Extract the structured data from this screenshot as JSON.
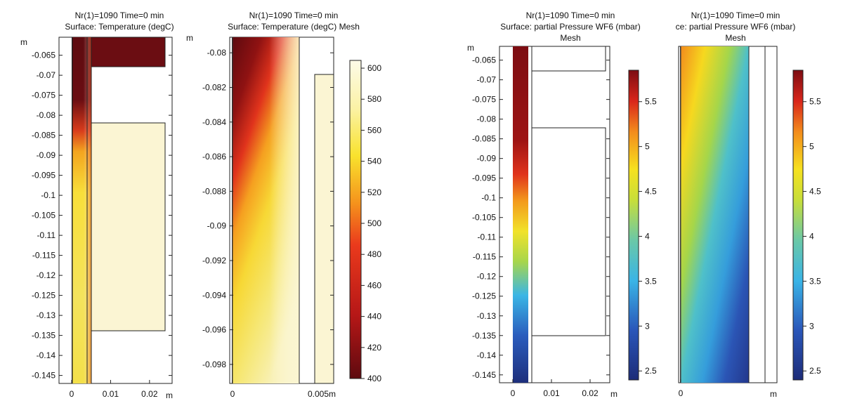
{
  "chart_data": [
    {
      "id": "p1",
      "type": "heatmap",
      "title": "Nr(1)=1090 Time=0 min",
      "subtitle": "Surface: Temperature (degC)",
      "xlabel": "m",
      "ylabel": "m",
      "xlim": [
        -0.004,
        0.026
      ],
      "ylim": [
        -0.147,
        -0.0605
      ],
      "xticks": [
        {
          "v": 0,
          "label": "0"
        },
        {
          "v": 0.01,
          "label": "0.01"
        },
        {
          "v": 0.02,
          "label": "0.02"
        }
      ],
      "yticks": [
        {
          "v": -0.065,
          "label": "-0.065"
        },
        {
          "v": -0.07,
          "label": "-0.07"
        },
        {
          "v": -0.075,
          "label": "-0.075"
        },
        {
          "v": -0.08,
          "label": "-0.08"
        },
        {
          "v": -0.085,
          "label": "-0.085"
        },
        {
          "v": -0.09,
          "label": "-0.09"
        },
        {
          "v": -0.095,
          "label": "-0.095"
        },
        {
          "v": -0.1,
          "label": "-0.1"
        },
        {
          "v": -0.105,
          "label": "-0.105"
        },
        {
          "v": -0.11,
          "label": "-0.11"
        },
        {
          "v": -0.115,
          "label": "-0.115"
        },
        {
          "v": -0.12,
          "label": "-0.12"
        },
        {
          "v": -0.125,
          "label": "-0.125"
        },
        {
          "v": -0.13,
          "label": "-0.13"
        },
        {
          "v": -0.135,
          "label": "-0.135"
        },
        {
          "v": -0.14,
          "label": "-0.14"
        },
        {
          "v": -0.145,
          "label": "-0.145"
        }
      ],
      "colorscale": "heat",
      "color_range": [
        400,
        600
      ],
      "regions": [
        {
          "name": "gap-channel",
          "x": [
            0,
            0.0045
          ],
          "y": [
            -0.147,
            -0.0605
          ]
        },
        {
          "name": "top-block",
          "x": [
            0.0045,
            0.024
          ],
          "y": [
            -0.066,
            -0.0605
          ],
          "value": 400
        },
        {
          "name": "wafer-block",
          "x": [
            0.0045,
            0.024
          ],
          "y": [
            -0.134,
            -0.0808
          ],
          "value": 596
        }
      ]
    },
    {
      "id": "p2",
      "type": "heatmap",
      "title": "Nr(1)=1090 Time=0 min",
      "subtitle": "Surface: Temperature (degC) Mesh",
      "ylabel": "m",
      "x_end_label": "0.005m",
      "xlim": [
        -0.0002,
        0.0058
      ],
      "ylim": [
        -0.0991,
        -0.0791
      ],
      "xticks": [
        {
          "v": 0,
          "label": "0"
        }
      ],
      "yticks": [
        {
          "v": -0.08,
          "label": "-0.08"
        },
        {
          "v": -0.082,
          "label": "-0.082"
        },
        {
          "v": -0.084,
          "label": "-0.084"
        },
        {
          "v": -0.086,
          "label": "-0.086"
        },
        {
          "v": -0.088,
          "label": "-0.088"
        },
        {
          "v": -0.09,
          "label": "-0.09"
        },
        {
          "v": -0.092,
          "label": "-0.092"
        },
        {
          "v": -0.094,
          "label": "-0.094"
        },
        {
          "v": -0.096,
          "label": "-0.096"
        },
        {
          "v": -0.098,
          "label": "-0.098"
        }
      ],
      "colorscale": "heat",
      "color_range": [
        400,
        605
      ],
      "colorbar_ticks": [
        {
          "v": 400,
          "label": "400"
        },
        {
          "v": 420,
          "label": "420"
        },
        {
          "v": 440,
          "label": "440"
        },
        {
          "v": 460,
          "label": "460"
        },
        {
          "v": 480,
          "label": "480"
        },
        {
          "v": 500,
          "label": "500"
        },
        {
          "v": 520,
          "label": "520"
        },
        {
          "v": 540,
          "label": "540"
        },
        {
          "v": 560,
          "label": "560"
        },
        {
          "v": 580,
          "label": "580"
        },
        {
          "v": 600,
          "label": "600"
        }
      ],
      "regions": [
        {
          "name": "gap-channel",
          "x": [
            0,
            0.0045
          ],
          "y": [
            -0.0991,
            -0.0791
          ]
        },
        {
          "name": "wafer-block",
          "x": [
            0.0045,
            0.0056
          ],
          "y": [
            -0.0991,
            -0.0806
          ],
          "value": 596
        }
      ]
    },
    {
      "id": "p3",
      "type": "heatmap",
      "title": "Nr(1)=1090 Time=0 min",
      "subtitle": "Surface: partial Pressure WF6 (mbar)",
      "subtitle2": "Mesh",
      "xlabel": "m",
      "ylabel": "m",
      "xlim": [
        -0.004,
        0.026
      ],
      "ylim": [
        -0.147,
        -0.0615
      ],
      "xticks": [
        {
          "v": 0,
          "label": "0"
        },
        {
          "v": 0.01,
          "label": "0.01"
        },
        {
          "v": 0.02,
          "label": "0.02"
        }
      ],
      "yticks": [
        {
          "v": -0.065,
          "label": "-0.065"
        },
        {
          "v": -0.07,
          "label": "-0.07"
        },
        {
          "v": -0.075,
          "label": "-0.075"
        },
        {
          "v": -0.08,
          "label": "-0.08"
        },
        {
          "v": -0.085,
          "label": "-0.085"
        },
        {
          "v": -0.09,
          "label": "-0.09"
        },
        {
          "v": -0.095,
          "label": "-0.095"
        },
        {
          "v": -0.1,
          "label": "-0.1"
        },
        {
          "v": -0.105,
          "label": "-0.105"
        },
        {
          "v": -0.11,
          "label": "-0.11"
        },
        {
          "v": -0.115,
          "label": "-0.115"
        },
        {
          "v": -0.12,
          "label": "-0.12"
        },
        {
          "v": -0.125,
          "label": "-0.125"
        },
        {
          "v": -0.13,
          "label": "-0.13"
        },
        {
          "v": -0.135,
          "label": "-0.135"
        },
        {
          "v": -0.14,
          "label": "-0.14"
        },
        {
          "v": -0.145,
          "label": "-0.145"
        }
      ],
      "colorscale": "jet",
      "color_range": [
        2.4,
        5.85
      ],
      "colorbar_ticks": [
        {
          "v": 2.5,
          "label": "2.5"
        },
        {
          "v": 3,
          "label": "3"
        },
        {
          "v": 3.5,
          "label": "3.5"
        },
        {
          "v": 4,
          "label": "4"
        },
        {
          "v": 4.5,
          "label": "4.5"
        },
        {
          "v": 5,
          "label": "5"
        },
        {
          "v": 5.5,
          "label": "5.5"
        }
      ],
      "regions": [
        {
          "name": "gap-channel",
          "x": [
            0,
            0.0045
          ],
          "y": [
            -0.147,
            -0.0615
          ]
        },
        {
          "name": "top-block",
          "x": [
            0.0045,
            0.024
          ],
          "y": [
            -0.066,
            -0.0615
          ]
        },
        {
          "name": "wafer-block",
          "x": [
            0.0045,
            0.024
          ],
          "y": [
            -0.134,
            -0.0808
          ]
        }
      ]
    },
    {
      "id": "p4",
      "type": "heatmap",
      "title": "Nr(1)=1090 Time=0 min",
      "subtitle": "ce: partial Pressure WF6 (mbar)",
      "subtitle2": "Mesh",
      "xlabel": "m",
      "xlim": [
        -0.0002,
        0.0058
      ],
      "ylim": [
        -0.0991,
        -0.0791
      ],
      "xticks": [
        {
          "v": 0,
          "label": "0"
        }
      ],
      "colorscale": "jet",
      "color_range": [
        2.4,
        5.85
      ],
      "colorbar_ticks": [
        {
          "v": 2.5,
          "label": "2.5"
        },
        {
          "v": 3,
          "label": "3"
        },
        {
          "v": 3.5,
          "label": "3.5"
        },
        {
          "v": 4,
          "label": "4"
        },
        {
          "v": 4.5,
          "label": "4.5"
        },
        {
          "v": 5,
          "label": "5"
        },
        {
          "v": 5.5,
          "label": "5.5"
        }
      ],
      "regions": [
        {
          "name": "gap-channel",
          "x": [
            0,
            0.0045
          ],
          "y": [
            -0.0991,
            -0.0791
          ]
        },
        {
          "name": "wafer-block",
          "x": [
            0.0045,
            0.0056
          ],
          "y": [
            -0.0991,
            -0.0791
          ]
        }
      ]
    }
  ]
}
